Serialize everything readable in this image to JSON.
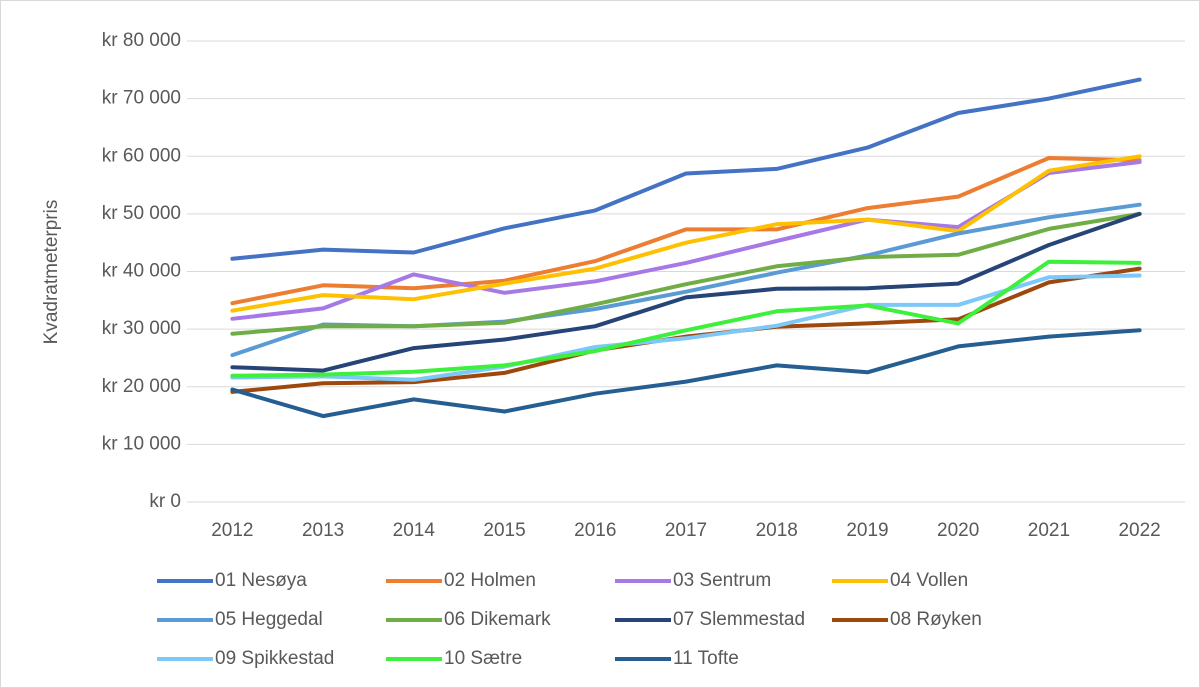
{
  "chart_data": {
    "type": "line",
    "y_label": "Kvadratmeterpris",
    "categories": [
      "2012",
      "2013",
      "2014",
      "2015",
      "2016",
      "2017",
      "2018",
      "2019",
      "2020",
      "2021",
      "2022"
    ],
    "ylim": [
      0,
      80000
    ],
    "yticks": [
      {
        "value": 0,
        "label": "kr 0"
      },
      {
        "value": 10000,
        "label": "kr 10 000"
      },
      {
        "value": 20000,
        "label": "kr 20 000"
      },
      {
        "value": 30000,
        "label": "kr 30 000"
      },
      {
        "value": 40000,
        "label": "kr 40 000"
      },
      {
        "value": 50000,
        "label": "kr 50 000"
      },
      {
        "value": 60000,
        "label": "kr 60 000"
      },
      {
        "value": 70000,
        "label": "kr 70 000"
      },
      {
        "value": 80000,
        "label": "kr 80 000"
      }
    ],
    "grid": true,
    "legend": "bottom",
    "series": [
      {
        "name": "01 Nesøya",
        "color": "#4472c4",
        "values": [
          42200,
          43800,
          43300,
          47500,
          50600,
          57000,
          57800,
          61500,
          67500,
          70000,
          73300
        ]
      },
      {
        "name": "02 Holmen",
        "color": "#ed7d31",
        "values": [
          34500,
          37600,
          37100,
          38400,
          41800,
          47300,
          47300,
          51000,
          53000,
          59700,
          59300
        ]
      },
      {
        "name": "03 Sentrum",
        "color": "#a679e6",
        "values": [
          31800,
          33600,
          39500,
          36300,
          38300,
          41500,
          45300,
          49000,
          47700,
          57100,
          59000
        ]
      },
      {
        "name": "04 Vollen",
        "color": "#ffc000",
        "values": [
          33200,
          35900,
          35200,
          37900,
          40500,
          45000,
          48200,
          49000,
          47000,
          57500,
          60000
        ]
      },
      {
        "name": "05 Heggedal",
        "color": "#5b9bd5",
        "values": [
          25500,
          30800,
          30500,
          31300,
          33500,
          36500,
          39800,
          42800,
          46600,
          49400,
          51600
        ]
      },
      {
        "name": "06 Dikemark",
        "color": "#70ad47",
        "values": [
          29200,
          30500,
          30500,
          31100,
          34300,
          37800,
          40900,
          42500,
          42900,
          47400,
          50000
        ]
      },
      {
        "name": "07 Slemmestad",
        "color": "#264478",
        "values": [
          23400,
          22800,
          26700,
          28200,
          30500,
          35500,
          37000,
          37100,
          37900,
          44600,
          50000
        ]
      },
      {
        "name": "08 Røyken",
        "color": "#9e480e",
        "values": [
          19100,
          20600,
          20800,
          22400,
          26300,
          28700,
          30400,
          31000,
          31700,
          38100,
          40500
        ]
      },
      {
        "name": "09 Spikkestad",
        "color": "#7cc8f8",
        "values": [
          21600,
          21800,
          21200,
          23500,
          26900,
          28400,
          30600,
          34200,
          34200,
          39000,
          39300
        ]
      },
      {
        "name": "10 Sætre",
        "color": "#3cf03c",
        "values": [
          21900,
          22100,
          22600,
          23700,
          26200,
          29800,
          33100,
          34100,
          31000,
          41700,
          41500
        ]
      },
      {
        "name": "11 Tofte",
        "color": "#255e91",
        "values": [
          19500,
          14900,
          17800,
          15700,
          18800,
          20900,
          23700,
          22500,
          27000,
          28700,
          29800
        ]
      }
    ]
  }
}
